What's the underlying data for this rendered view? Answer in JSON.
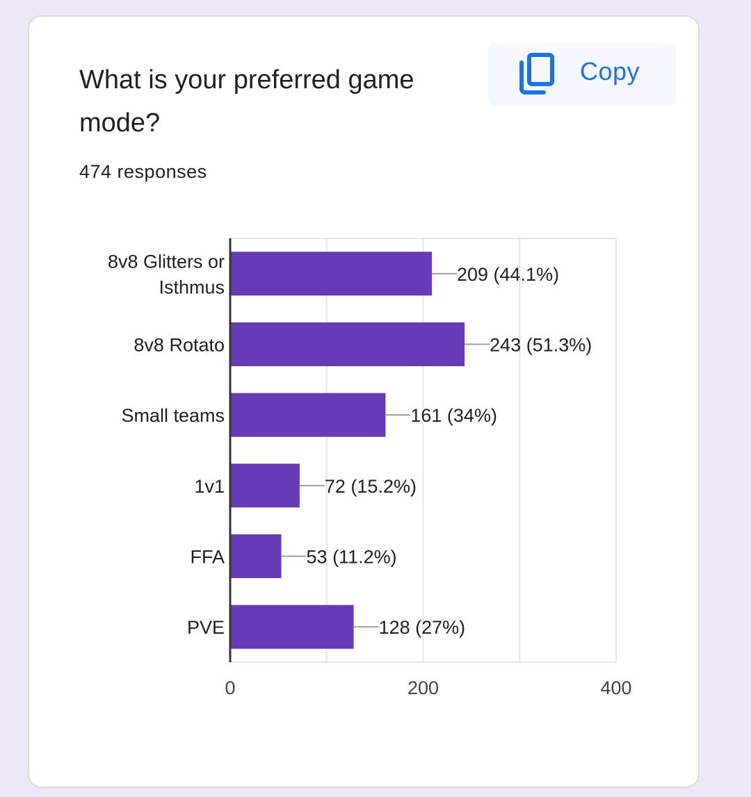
{
  "question": {
    "title": "What is your preferred game mode?",
    "responses": "474 responses"
  },
  "copy_button": {
    "label": "Copy",
    "icon": "copy-icon"
  },
  "colors": {
    "bar": "#673ab7",
    "accent": "#1a73e8",
    "background": "#ece8f6"
  },
  "chart_data": {
    "type": "bar",
    "orientation": "horizontal",
    "categories": [
      [
        "8v8 Glitters or",
        "Isthmus"
      ],
      [
        "8v8 Rotato"
      ],
      [
        "Small teams"
      ],
      [
        "1v1"
      ],
      [
        "FFA"
      ],
      [
        "PVE"
      ]
    ],
    "values": [
      209,
      243,
      161,
      72,
      53,
      128
    ],
    "value_labels": [
      "209 (44.1%)",
      "243 (51.3%)",
      "161 (34%)",
      "72 (15.2%)",
      "53 (11.2%)",
      "128 (27%)"
    ],
    "xlim": [
      0,
      400
    ],
    "x_ticks": [
      "0",
      "200",
      "400"
    ],
    "grid": true
  }
}
